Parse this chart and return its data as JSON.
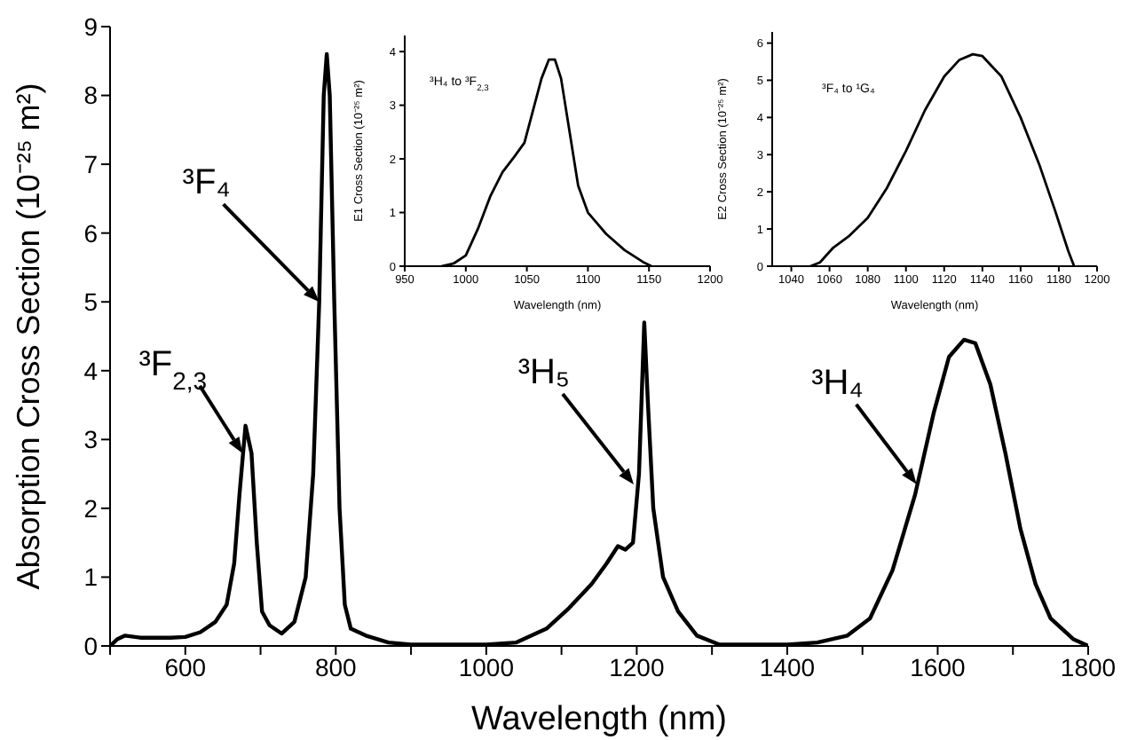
{
  "chart_data": [
    {
      "type": "line",
      "xlabel": "Wavelength (nm)",
      "ylabel": "Absorption Cross Section (10⁻²⁵ m²)",
      "color": "#000000",
      "marker": "none",
      "x": [
        500,
        510,
        520,
        540,
        580,
        600,
        620,
        640,
        655,
        665,
        672,
        680,
        688,
        695,
        702,
        712,
        728,
        745,
        760,
        770,
        778,
        784,
        788,
        792,
        798,
        805,
        812,
        820,
        840,
        870,
        900,
        1000,
        1040,
        1080,
        1110,
        1140,
        1160,
        1175,
        1185,
        1195,
        1203,
        1210,
        1215,
        1222,
        1235,
        1255,
        1280,
        1310,
        1400,
        1440,
        1480,
        1510,
        1540,
        1570,
        1595,
        1615,
        1635,
        1650,
        1670,
        1690,
        1710,
        1730,
        1750,
        1780,
        1800
      ],
      "values": [
        0,
        0.1,
        0.15,
        0.12,
        0.12,
        0.13,
        0.2,
        0.35,
        0.6,
        1.2,
        2.2,
        3.2,
        2.8,
        1.5,
        0.5,
        0.3,
        0.18,
        0.35,
        1.0,
        2.5,
        5.0,
        8.0,
        8.6,
        8.0,
        5.0,
        2.0,
        0.6,
        0.25,
        0.15,
        0.05,
        0.02,
        0.02,
        0.05,
        0.25,
        0.55,
        0.9,
        1.2,
        1.45,
        1.4,
        1.5,
        2.5,
        4.7,
        3.5,
        2.0,
        1.0,
        0.5,
        0.15,
        0.02,
        0.02,
        0.05,
        0.15,
        0.4,
        1.1,
        2.2,
        3.4,
        4.2,
        4.45,
        4.4,
        3.8,
        2.8,
        1.7,
        0.9,
        0.4,
        0.1,
        0
      ],
      "xlim": [
        500,
        1800
      ],
      "ylim": [
        0,
        9
      ],
      "xticks": [
        {
          "value": 500,
          "label": null
        },
        600,
        {
          "value": 700,
          "label": null
        },
        800,
        {
          "value": 900,
          "label": null
        },
        1000,
        {
          "value": 1100,
          "label": null
        },
        1200,
        {
          "value": 1300,
          "label": null
        },
        1400,
        {
          "value": 1500,
          "label": null
        },
        1600,
        {
          "value": 1700,
          "label": null
        },
        1800
      ],
      "yticks": [
        0,
        1,
        2,
        3,
        4,
        5,
        6,
        7,
        8,
        9
      ],
      "annotations": [
        {
          "text": "³F$_{2,3}$",
          "x": 676,
          "y": 2.8
        },
        {
          "text": "³F₄",
          "x": 778,
          "y": 5.0
        },
        "³H₅",
        {
          "text": "³H₄",
          "x": 1572,
          "y": 2.35
        }
      ]
    },
    {
      "type": "line",
      "xlabel": "Wavelength (nm)",
      "ylabel": "E1 Cross Section (10⁻²⁵ m²)",
      "color": "#000000",
      "marker": "none",
      "x": [
        980,
        990,
        1000,
        1010,
        1020,
        1030,
        1040,
        1048,
        1055,
        1062,
        1068,
        1073,
        1078,
        1085,
        1092,
        1100,
        1115,
        1130,
        1145,
        1152
      ],
      "values": [
        0,
        0.05,
        0.2,
        0.7,
        1.3,
        1.75,
        2.05,
        2.3,
        2.9,
        3.5,
        3.85,
        3.85,
        3.5,
        2.5,
        1.5,
        1.0,
        0.6,
        0.3,
        0.08,
        0
      ],
      "xlim": [
        950,
        1200
      ],
      "ylim": [
        0,
        4.3
      ],
      "xticks": [
        950,
        1000,
        1050,
        1100,
        1150,
        1200
      ],
      "yticks": [
        0,
        1,
        2,
        3,
        4
      ],
      "annotations": [
        "³H₄ to ³F$_{2,3}$"
      ]
    },
    {
      "type": "line",
      "xlabel": "Wavelength (nm)",
      "ylabel": "E2 Cross Section (10⁻²⁵ m²)",
      "color": "#000000",
      "marker": "none",
      "x": [
        1050,
        1055,
        1062,
        1070,
        1080,
        1090,
        1100,
        1110,
        1120,
        1128,
        1135,
        1140,
        1150,
        1160,
        1170,
        1178,
        1185,
        1188
      ],
      "values": [
        0,
        0.1,
        0.5,
        0.8,
        1.3,
        2.1,
        3.1,
        4.2,
        5.1,
        5.55,
        5.7,
        5.65,
        5.1,
        4.0,
        2.7,
        1.5,
        0.4,
        0
      ],
      "xlim": [
        1030,
        1200
      ],
      "ylim": [
        0,
        6.3
      ],
      "xticks": [
        1040,
        1060,
        1080,
        1100,
        1120,
        1140,
        1160,
        1180,
        1200
      ],
      "yticks": [
        0,
        1,
        2,
        3,
        4,
        5,
        6
      ],
      "annotations": [
        "³F₄ to ¹G₄"
      ]
    }
  ]
}
